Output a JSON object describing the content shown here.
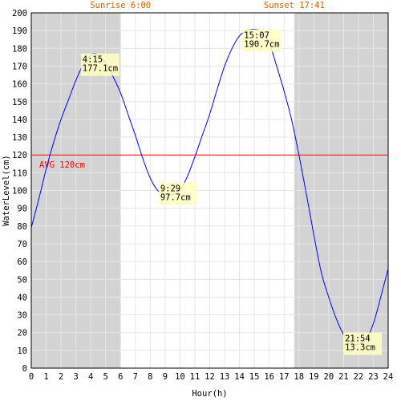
{
  "chart_data": {
    "type": "line",
    "xlabel": "Hour(h)",
    "ylabel": "WaterLevel(cm)",
    "xlim": [
      0,
      24
    ],
    "ylim": [
      0,
      200
    ],
    "x_ticks": [
      0,
      1,
      2,
      3,
      4,
      5,
      6,
      7,
      8,
      9,
      10,
      11,
      12,
      13,
      14,
      15,
      16,
      17,
      18,
      19,
      20,
      21,
      22,
      23,
      24
    ],
    "y_ticks": [
      0,
      10,
      20,
      30,
      40,
      50,
      60,
      70,
      80,
      90,
      100,
      110,
      120,
      130,
      140,
      150,
      160,
      170,
      180,
      190,
      200
    ],
    "grid": true,
    "night_periods": [
      [
        0,
        6.0
      ],
      [
        17.683,
        24
      ]
    ],
    "sunrise_label": "Sunrise 6:00",
    "sunset_label": "Sunset 17:41",
    "average": {
      "value": 120,
      "label": "AVG 120cm",
      "color": "#ff0000"
    },
    "series": [
      {
        "color": "#0000ff",
        "x": [
          0,
          0.5,
          1,
          1.5,
          2,
          2.5,
          3,
          3.5,
          4,
          4.25,
          4.5,
          5,
          5.5,
          6,
          6.5,
          7,
          7.5,
          8,
          8.5,
          9,
          9.483,
          10,
          10.5,
          11,
          11.5,
          12,
          12.5,
          13,
          13.5,
          14,
          14.5,
          15.117,
          15.5,
          16,
          16.5,
          17,
          17.5,
          18,
          18.5,
          19,
          19.5,
          20,
          20.5,
          21,
          21.5,
          21.9,
          22.5,
          23,
          23.5,
          24
        ],
        "y": [
          79,
          95,
          112,
          127,
          140,
          151,
          162,
          171,
          176,
          177.1,
          176,
          172,
          164,
          155,
          143,
          131,
          118,
          107,
          100,
          98,
          97.7,
          100,
          108,
          119,
          131,
          143,
          157,
          170,
          180,
          187,
          190,
          190.7,
          189,
          183,
          170,
          156,
          140,
          120,
          98,
          75,
          54,
          40,
          28,
          19,
          14.5,
          13.3,
          16,
          25,
          40,
          56
        ]
      }
    ],
    "annotations": [
      {
        "time": "4:15",
        "value": "177.1cm",
        "x": 4.25,
        "y": 177.1
      },
      {
        "time": "9:29",
        "value": "97.7cm",
        "x": 9.483,
        "y": 97.7
      },
      {
        "time": "15:07",
        "value": "190.7cm",
        "x": 15.117,
        "y": 190.7
      },
      {
        "time": "21:54",
        "value": "13.3cm",
        "x": 21.9,
        "y": 13.3
      }
    ]
  }
}
